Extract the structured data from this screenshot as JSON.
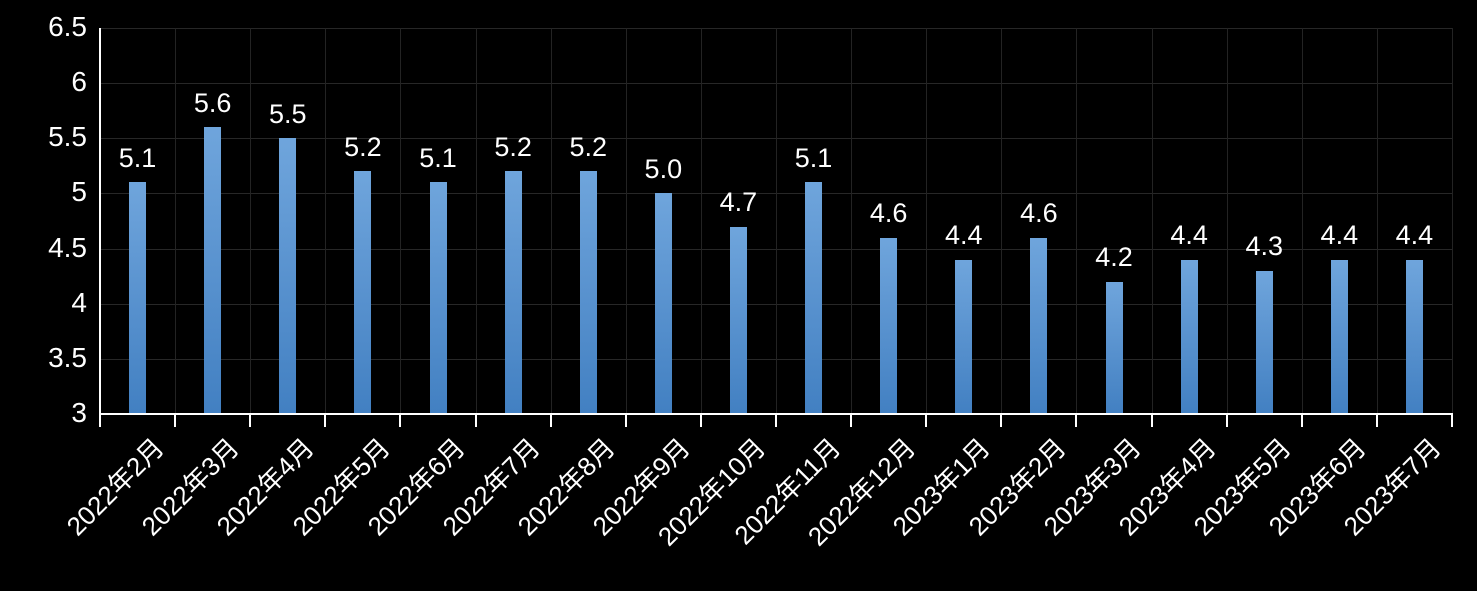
{
  "chart_data": {
    "type": "bar",
    "title": "",
    "xlabel": "",
    "ylabel": "",
    "categories": [
      "2022年2月",
      "2022年3月",
      "2022年4月",
      "2022年5月",
      "2022年6月",
      "2022年7月",
      "2022年8月",
      "2022年9月",
      "2022年10月",
      "2022年11月",
      "2022年12月",
      "2023年1月",
      "2023年2月",
      "2023年3月",
      "2023年4月",
      "2023年5月",
      "2023年6月",
      "2023年7月"
    ],
    "values": [
      5.1,
      5.6,
      5.5,
      5.2,
      5.1,
      5.2,
      5.2,
      5.0,
      4.7,
      5.1,
      4.6,
      4.4,
      4.6,
      4.2,
      4.4,
      4.3,
      4.4,
      4.4
    ],
    "data_labels": [
      "5.1",
      "5.6",
      "5.5",
      "5.2",
      "5.1",
      "5.2",
      "5.2",
      "5.0",
      "4.7",
      "5.1",
      "4.6",
      "4.4",
      "4.6",
      "4.2",
      "4.4",
      "4.3",
      "4.4",
      "4.4"
    ],
    "ylim": [
      3,
      6.5
    ],
    "y_ticks": [
      6.5,
      6,
      5.5,
      5,
      4.5,
      4,
      3.5,
      3
    ],
    "y_tick_labels": [
      "6.5",
      "6",
      "5.5",
      "5",
      "4.5",
      "4",
      "3.5",
      "3"
    ],
    "grid": true,
    "legend": false,
    "colors": {
      "background": "#000000",
      "bar_gradient_top": "#6fa5dc",
      "bar_gradient_bottom": "#4280c2",
      "gridline": "#272727",
      "axis": "#ffffff",
      "text": "#ffffff"
    }
  }
}
